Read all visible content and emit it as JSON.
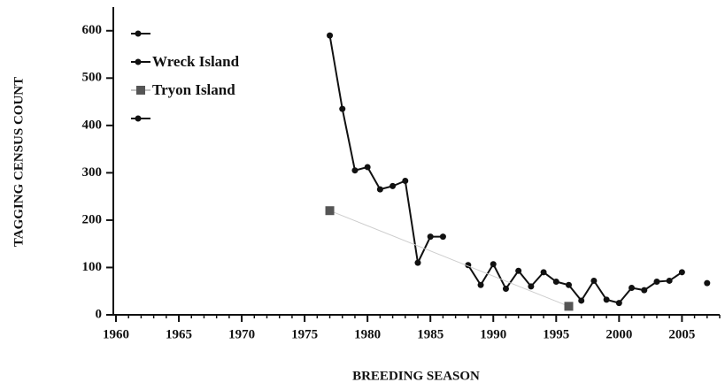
{
  "chart_data": {
    "type": "line",
    "xlabel": "BREEDING SEASON",
    "ylabel": "TAGGING CENSUS COUNT",
    "xlim": [
      1960,
      2008
    ],
    "ylim": [
      0,
      650
    ],
    "xticks": [
      1960,
      1965,
      1970,
      1975,
      1980,
      1985,
      1990,
      1995,
      2000,
      2005
    ],
    "yticks": [
      0,
      100,
      200,
      300,
      400,
      500,
      600
    ],
    "legend": "upper left",
    "series": [
      {
        "color": "#111111",
        "marker": "circle",
        "x": [],
        "values": []
      },
      {
        "name": "Wreck Island",
        "color": "#111111",
        "marker": "circle",
        "x": [
          1977,
          1978,
          1979,
          1980,
          1981,
          1982,
          1983,
          1984,
          1985,
          1986,
          1987,
          1988,
          1989,
          1990,
          1991,
          1992,
          1993,
          1994,
          1995,
          1996,
          1997,
          1998,
          1999,
          2000,
          2001,
          2002,
          2003,
          2004,
          2005
        ],
        "values": [
          590,
          435,
          305,
          312,
          265,
          272,
          283,
          110,
          165,
          165,
          null,
          105,
          63,
          107,
          55,
          93,
          60,
          90,
          70,
          63,
          30,
          72,
          32,
          25,
          57,
          52,
          70,
          72,
          90
        ]
      },
      {
        "name": "Tryon Island",
        "color": "#555555",
        "line_color": "#cccccc",
        "marker": "square",
        "x": [
          1977,
          1996
        ],
        "values": [
          220,
          18
        ]
      },
      {
        "color": "#111111",
        "marker": "circle",
        "x": [
          2007
        ],
        "values": [
          67
        ]
      }
    ]
  }
}
